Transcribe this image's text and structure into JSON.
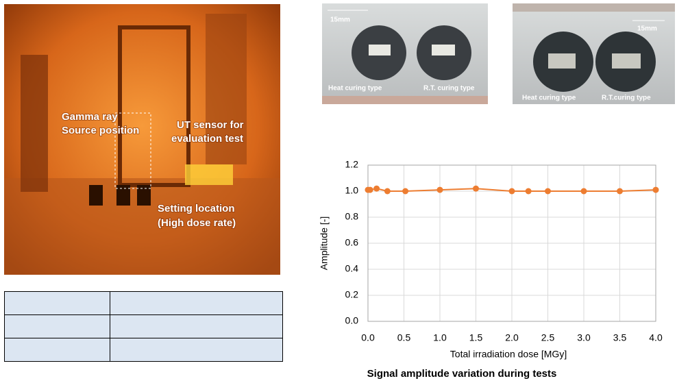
{
  "photo_setup": {
    "labels": [
      "Gamma ray",
      "Source position",
      "UT sensor for",
      "evaluation test",
      "Setting location",
      "(High dose rate)"
    ]
  },
  "photo_samples_before": {
    "scale": "15mm",
    "labels": [
      "Heat curing type",
      "R.T. curing type"
    ]
  },
  "photo_samples_after": {
    "scale": "15mm",
    "labels": [
      "Heat curing type",
      "R.T.curing type"
    ]
  },
  "chart_data": {
    "type": "line",
    "title": "Signal amplitude variation during tests",
    "x_label": "Total irradiation dose [MGy]",
    "y_label": "Amplitude [-]",
    "x": [
      0,
      0.03,
      0.12,
      0.27,
      0.52,
      1.0,
      1.5,
      2.0,
      2.23,
      2.5,
      3.0,
      3.5,
      4.0
    ],
    "values": [
      1.01,
      1.01,
      1.02,
      1.0,
      1.0,
      1.01,
      1.02,
      1.0,
      1.0,
      1.0,
      1.0,
      1.0,
      1.01
    ],
    "color": "#ed7d31",
    "xlim": [
      0,
      4
    ],
    "xticks": [
      {
        "value": 0,
        "label": "0.0"
      },
      0.5,
      {
        "value": 1,
        "label": "1.0"
      },
      1.5,
      {
        "value": 2,
        "label": "2.0"
      },
      2.5,
      {
        "value": 3,
        "label": "3.0"
      },
      3.5,
      {
        "value": 4,
        "label": "4.0"
      }
    ],
    "ylim": [
      0,
      1.2
    ],
    "yticks": [
      {
        "value": 0,
        "label": "0.0"
      },
      0.2,
      0.4,
      0.6,
      0.8,
      {
        "value": 1,
        "label": "1.0"
      },
      1.2
    ],
    "grid": true
  }
}
